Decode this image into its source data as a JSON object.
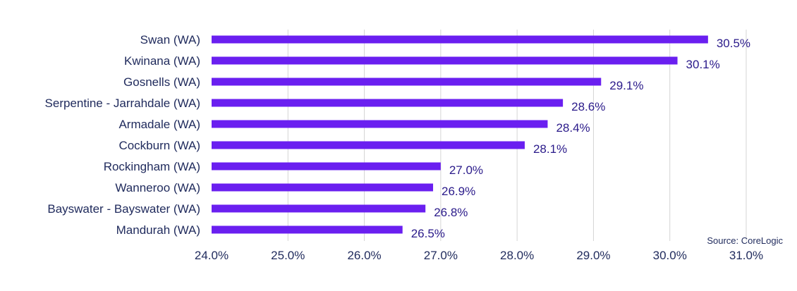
{
  "chart_data": {
    "type": "bar",
    "orientation": "horizontal",
    "categories": [
      "Swan (WA)",
      "Kwinana (WA)",
      "Gosnells (WA)",
      "Serpentine - Jarrahdale (WA)",
      "Armadale (WA)",
      "Cockburn (WA)",
      "Rockingham (WA)",
      "Wanneroo (WA)",
      "Bayswater - Bayswater (WA)",
      "Mandurah (WA)"
    ],
    "values": [
      30.5,
      30.1,
      29.1,
      28.6,
      28.4,
      28.1,
      27.0,
      26.9,
      26.8,
      26.5
    ],
    "data_labels": [
      "30.5%",
      "30.1%",
      "29.1%",
      "28.6%",
      "28.4%",
      "28.1%",
      "27.0%",
      "26.9%",
      "26.8%",
      "26.5%"
    ],
    "xlim": [
      24.0,
      31.0
    ],
    "x_ticks": [
      24.0,
      25.0,
      26.0,
      27.0,
      28.0,
      29.0,
      30.0,
      31.0
    ],
    "x_tick_labels": [
      "24.0%",
      "25.0%",
      "26.0%",
      "27.0%",
      "28.0%",
      "29.0%",
      "30.0%",
      "31.0%"
    ],
    "title": "",
    "xlabel": "",
    "ylabel": "",
    "grid": "vertical",
    "legend": "none",
    "bar_color": "#6a1ff0",
    "source": "Source: CoreLogic"
  }
}
